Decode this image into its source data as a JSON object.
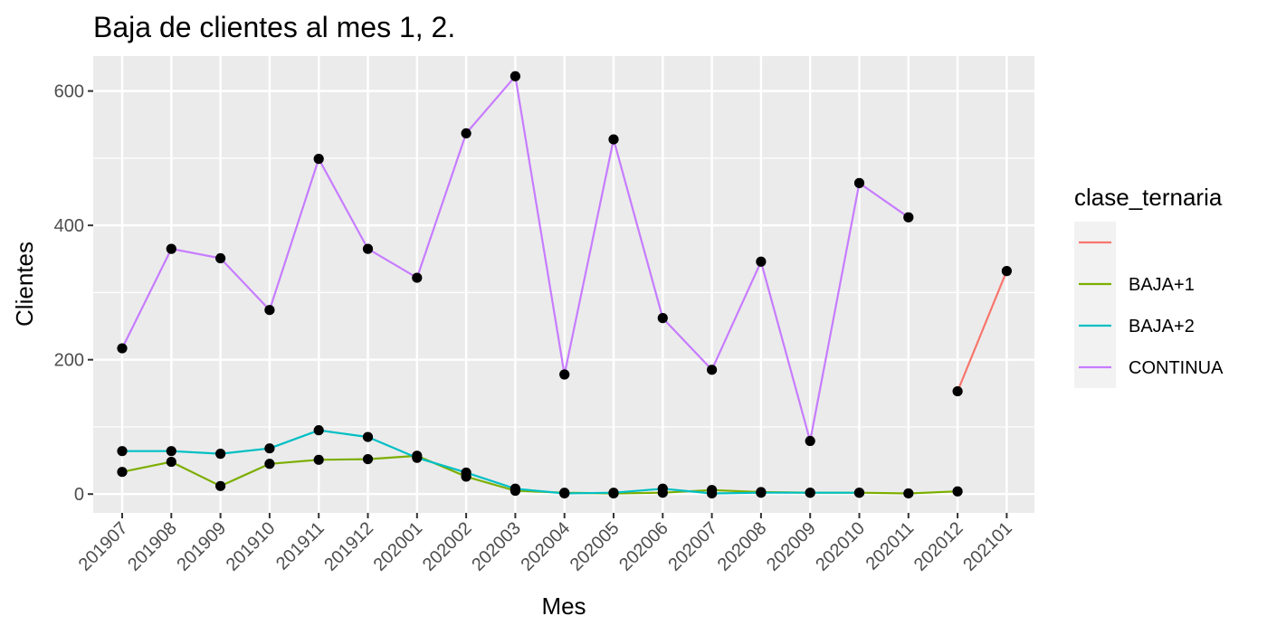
{
  "chart_data": {
    "type": "line",
    "title": "Baja de clientes al mes 1, 2.",
    "xlabel": "Mes",
    "ylabel": "Clientes",
    "categories": [
      "201907",
      "201908",
      "201909",
      "201910",
      "201911",
      "201912",
      "202001",
      "202002",
      "202003",
      "202004",
      "202005",
      "202006",
      "202007",
      "202008",
      "202009",
      "202010",
      "202011",
      "202012",
      "202101"
    ],
    "ylim": [
      -28,
      652
    ],
    "yticks": [
      0,
      200,
      400,
      600
    ],
    "grid": true,
    "legend": {
      "title": "clase_ternaria",
      "position": "right",
      "entries": [
        {
          "label": "",
          "color": "#F8766D"
        },
        {
          "label": "BAJA+1",
          "color": "#7CAE00"
        },
        {
          "label": "BAJA+2",
          "color": "#00BFC4"
        },
        {
          "label": "CONTINUA",
          "color": "#C77CFF"
        }
      ]
    },
    "series": [
      {
        "color": "#F8766D",
        "values": [
          null,
          null,
          null,
          null,
          null,
          null,
          null,
          null,
          null,
          null,
          null,
          null,
          null,
          null,
          null,
          null,
          null,
          153,
          332
        ]
      },
      {
        "name": "BAJA+1",
        "color": "#7CAE00",
        "values": [
          33,
          48,
          12,
          45,
          51,
          52,
          57,
          26,
          5,
          2,
          1,
          2,
          6,
          3,
          2,
          2,
          1,
          4,
          null
        ]
      },
      {
        "name": "BAJA+2",
        "color": "#00BFC4",
        "values": [
          64,
          64,
          60,
          68,
          95,
          85,
          54,
          32,
          8,
          1,
          2,
          8,
          1,
          2,
          2,
          2,
          null,
          null,
          null
        ]
      },
      {
        "name": "CONTINUA",
        "color": "#C77CFF",
        "values": [
          217,
          365,
          351,
          274,
          499,
          365,
          322,
          537,
          622,
          178,
          528,
          262,
          185,
          346,
          79,
          463,
          412,
          null,
          null
        ]
      }
    ],
    "point_color": "#000000",
    "panel_background": "#EBEBEB"
  }
}
